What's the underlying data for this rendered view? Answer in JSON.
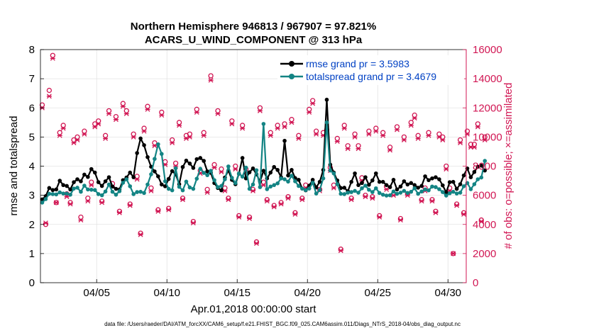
{
  "colors": {
    "rmse": "#000000",
    "spread": "#138484",
    "obs": "#d11653",
    "legend_text": "#0041c4",
    "grid": "#e3e3e3"
  },
  "chart_data": {
    "type": "line",
    "title": "Northern Hemisphere 946813 / 967907 = 97.821%",
    "subtitle": "ACARS_U_WIND_COMPONENT @ 313 hPa",
    "xlabel": "Apr.01,2018 00:00:00 start",
    "ylabel": "rmse and totalspread",
    "y2label": "# of obs: o=possible; ×=assimilated",
    "xlim": [
      1,
      31.3
    ],
    "ylim": [
      0,
      8
    ],
    "y2lim": [
      0,
      16000
    ],
    "x_tick_values": [
      5,
      10,
      15,
      20,
      25,
      30
    ],
    "x_tick_labels": [
      "04/05",
      "04/10",
      "04/15",
      "04/20",
      "04/25",
      "04/30"
    ],
    "y_tick_labels": [
      "0",
      "1",
      "2",
      "3",
      "4",
      "5",
      "6",
      "7",
      "8"
    ],
    "y2_tick_labels": [
      "0",
      "2000",
      "4000",
      "6000",
      "8000",
      "10000",
      "12000",
      "14000",
      "16000"
    ],
    "footnote": "data file: /Users/raeder/DAI/ATM_forcXX/CAM6_setup/f.e21.FHIST_BGC.f09_025.CAM6assim.011/Diags_NTrS_2018-04/obs_diag_output.nc",
    "x_start": 1.125,
    "x_step": 0.25,
    "series": [
      {
        "name": "rmse",
        "legend": "rmse grand pr = 3.5983",
        "values": [
          2.86,
          2.97,
          3.25,
          3.18,
          3.2,
          3.5,
          3.35,
          3.32,
          3.2,
          3.45,
          3.55,
          3.48,
          3.71,
          3.63,
          3.9,
          3.78,
          3.45,
          3.32,
          3.48,
          3.62,
          3.3,
          3.22,
          3.2,
          3.52,
          3.61,
          3.78,
          3.62,
          4.45,
          4.95,
          4.72,
          4.31,
          3.98,
          3.82,
          3.65,
          3.37,
          3.31,
          3.56,
          3.83,
          3.72,
          3.38,
          3.97,
          4.19,
          4.09,
          3.94,
          4.24,
          4.28,
          4.18,
          3.82,
          3.77,
          3.42,
          3.25,
          3.17,
          3.61,
          3.85,
          3.53,
          3.38,
          3.74,
          4.28,
          3.58,
          3.79,
          3.92,
          3.72,
          3.47,
          3.84,
          3.58,
          3.78,
          3.97,
          3.87,
          3.62,
          4.87,
          3.68,
          3.87,
          3.59,
          3.53,
          3.23,
          3.17,
          3.33,
          3.53,
          3.27,
          3.46,
          3.87,
          6.28,
          4.05,
          3.78,
          3.51,
          3.25,
          3.26,
          3.14,
          3.46,
          3.75,
          3.35,
          3.42,
          3.62,
          3.36,
          3.51,
          3.75,
          3.46,
          3.46,
          3.35,
          3.28,
          3.53,
          3.2,
          3.3,
          3.48,
          3.37,
          3.42,
          3.35,
          3.26,
          3.32,
          3.65,
          3.52,
          3.58,
          3.62,
          3.55,
          3.34,
          3.1,
          3.45,
          3.46,
          3.22,
          3.38,
          3.68,
          3.92,
          3.62,
          3.8,
          3.98,
          4.02,
          3.85
        ]
      },
      {
        "name": "totalspread",
        "legend": "totalspread grand pr = 3.4679",
        "values": [
          2.75,
          2.87,
          3.05,
          3.04,
          3.03,
          3.1,
          3.06,
          3.06,
          3.02,
          3.23,
          3.26,
          3.12,
          3.33,
          3.2,
          3.19,
          3.18,
          3.04,
          3.0,
          3.13,
          3.37,
          3.12,
          3.02,
          3.14,
          3.43,
          3.55,
          3.31,
          3.04,
          3.11,
          3.12,
          3.08,
          3.37,
          3.72,
          4.25,
          4.75,
          4.42,
          3.48,
          3.22,
          3.17,
          3.93,
          3.29,
          3.17,
          3.47,
          3.27,
          3.22,
          3.57,
          3.91,
          3.77,
          3.69,
          3.84,
          3.52,
          3.28,
          3.32,
          3.55,
          3.99,
          3.6,
          3.42,
          3.75,
          3.64,
          3.95,
          3.22,
          3.37,
          3.86,
          3.28,
          5.45,
          3.21,
          3.3,
          3.35,
          3.41,
          3.58,
          3.55,
          3.47,
          3.67,
          3.48,
          3.32,
          3.23,
          3.18,
          3.23,
          3.43,
          3.06,
          3.18,
          3.58,
          5.5,
          3.85,
          3.75,
          3.38,
          3.05,
          3.04,
          3.09,
          3.11,
          3.15,
          3.09,
          3.24,
          3.33,
          3.19,
          3.11,
          3.24,
          3.08,
          3.02,
          2.99,
          3.0,
          3.13,
          3.05,
          3.09,
          3.15,
          3.08,
          3.12,
          3.24,
          3.05,
          3.13,
          3.2,
          3.17,
          3.3,
          3.28,
          3.21,
          3.11,
          2.99,
          3.07,
          3.12,
          3.06,
          3.09,
          3.31,
          3.42,
          3.21,
          3.38,
          3.55,
          3.61,
          4.18
        ]
      },
      {
        "name": "obs_possible",
        "axis": "right",
        "values": [
          12200,
          4000,
          13200,
          15600,
          5500,
          10300,
          10800,
          6100,
          5500,
          9800,
          10000,
          4500,
          10400,
          5800,
          6900,
          10900,
          11100,
          5600,
          10100,
          11800,
          6800,
          11400,
          4900,
          12300,
          11800,
          5400,
          10200,
          7300,
          3400,
          10600,
          12100,
          6500,
          9600,
          5000,
          11700,
          8300,
          5100,
          9800,
          8200,
          11000,
          5800,
          10100,
          10200,
          4200,
          11900,
          7700,
          10300,
          6400,
          14200,
          8100,
          11800,
          7800,
          6500,
          5800,
          11100,
          8000,
          4600,
          10800,
          7800,
          4500,
          6400,
          2800,
          12000,
          6900,
          5700,
          10300,
          5300,
          10800,
          5500,
          10900,
          5900,
          11200,
          4800,
          10100,
          5800,
          6700,
          11900,
          12500,
          10400,
          6400,
          10300,
          10500,
          7900,
          6700,
          9900,
          2300,
          10800,
          9400,
          5800,
          10200,
          9400,
          7200,
          6000,
          10400,
          5900,
          10600,
          4600,
          10300,
          6600,
          9300,
          6100,
          10700,
          4400,
          10000,
          6100,
          11000,
          11500,
          10100,
          5700,
          6500,
          10300,
          5700,
          4900,
          10200,
          10000,
          8000,
          6500,
          2000,
          5400,
          9800,
          4800,
          10400,
          9500,
          9500,
          10900,
          4300,
          10000
        ]
      },
      {
        "name": "obs_assimilated",
        "axis": "right",
        "values": [
          12000,
          4100,
          12800,
          15400,
          5500,
          10100,
          10600,
          5900,
          5400,
          9600,
          9800,
          4300,
          10200,
          5600,
          6700,
          10700,
          10900,
          5500,
          9900,
          11600,
          6600,
          11200,
          4800,
          12100,
          11600,
          5300,
          10000,
          7100,
          3300,
          10400,
          11900,
          6300,
          9400,
          4900,
          11500,
          8100,
          5000,
          9600,
          8000,
          10800,
          5700,
          9900,
          10000,
          4100,
          11700,
          7500,
          10100,
          6200,
          13900,
          7900,
          11600,
          7600,
          6300,
          5700,
          10900,
          7800,
          4500,
          10600,
          7600,
          4400,
          6300,
          2700,
          11800,
          6700,
          5600,
          10100,
          5200,
          10600,
          5400,
          10700,
          5800,
          11000,
          4700,
          9900,
          5700,
          6500,
          11700,
          12300,
          10200,
          6300,
          10100,
          10300,
          7700,
          6500,
          9700,
          2200,
          10600,
          9200,
          5700,
          10000,
          9200,
          7000,
          5900,
          10200,
          5800,
          10400,
          4500,
          10100,
          6400,
          9100,
          6000,
          10500,
          4300,
          9800,
          6000,
          10800,
          11300,
          9900,
          5600,
          6300,
          10100,
          5600,
          4800,
          10000,
          9800,
          7800,
          6300,
          2000,
          5300,
          9600,
          4700,
          10200,
          9300,
          9300,
          10700,
          4200,
          9800
        ]
      }
    ]
  }
}
